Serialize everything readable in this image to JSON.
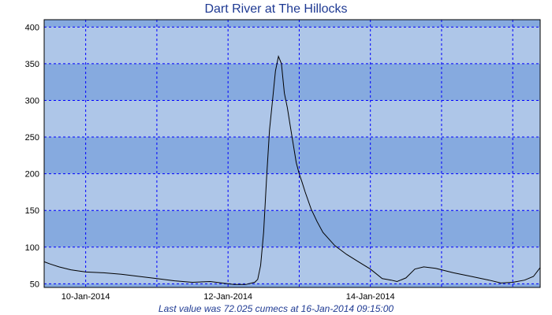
{
  "chart_data": {
    "type": "line",
    "title": "Dart River at The Hillocks",
    "caption": "Last value was 72.025 cumecs at 16-Jan-2014 09:15:00",
    "xlabel": "",
    "ylabel": "",
    "ylim": [
      45,
      410
    ],
    "xlim": [
      "09-Jan-2014 10:00",
      "16-Jan-2014 09:15"
    ],
    "yticks": [
      50,
      100,
      150,
      200,
      250,
      300,
      350,
      400
    ],
    "xticks": [
      {
        "label": "10-Jan-2014",
        "date": "10-Jan-2014 00:00"
      },
      {
        "label": "12-Jan-2014",
        "date": "12-Jan-2014 00:00"
      },
      {
        "label": "14-Jan-2014",
        "date": "14-Jan-2014 00:00"
      }
    ],
    "x_gridlines": [
      "10-Jan-2014 00:00",
      "11-Jan-2014 00:00",
      "12-Jan-2014 00:00",
      "13-Jan-2014 00:00",
      "14-Jan-2014 00:00",
      "15-Jan-2014 00:00",
      "16-Jan-2014 00:00"
    ],
    "grid": true,
    "colors": {
      "band_dark": "#86aadf",
      "band_light": "#aec6e8",
      "grid": "#0000ff",
      "line": "#000000",
      "title": "#1f3a93"
    },
    "series": [
      {
        "x": [
          "09-Jan-2014 10:00",
          "09-Jan-2014 12:00",
          "09-Jan-2014 15:00",
          "09-Jan-2014 19:00",
          "10-Jan-2014 00:00",
          "10-Jan-2014 06:00",
          "10-Jan-2014 12:00",
          "10-Jan-2014 18:00",
          "11-Jan-2014 00:00",
          "11-Jan-2014 06:00",
          "11-Jan-2014 12:00",
          "11-Jan-2014 18:00",
          "11-Jan-2014 22:00",
          "12-Jan-2014 02:00",
          "12-Jan-2014 06:00",
          "12-Jan-2014 07:00",
          "12-Jan-2014 08:00",
          "12-Jan-2014 09:00",
          "12-Jan-2014 10:00",
          "12-Jan-2014 11:00",
          "12-Jan-2014 12:00",
          "12-Jan-2014 13:00",
          "12-Jan-2014 14:00",
          "12-Jan-2014 15:00",
          "12-Jan-2014 16:00",
          "12-Jan-2014 17:00",
          "12-Jan-2014 18:00",
          "12-Jan-2014 19:00",
          "12-Jan-2014 20:00",
          "12-Jan-2014 21:00",
          "12-Jan-2014 22:00",
          "12-Jan-2014 23:00",
          "13-Jan-2014 00:00",
          "13-Jan-2014 01:00",
          "13-Jan-2014 02:00",
          "13-Jan-2014 04:00",
          "13-Jan-2014 06:00",
          "13-Jan-2014 08:00",
          "13-Jan-2014 12:00",
          "13-Jan-2014 16:00",
          "13-Jan-2014 20:00",
          "14-Jan-2014 00:00",
          "14-Jan-2014 04:00",
          "14-Jan-2014 07:00",
          "14-Jan-2014 09:00",
          "14-Jan-2014 12:00",
          "14-Jan-2014 15:00",
          "14-Jan-2014 18:00",
          "14-Jan-2014 22:00",
          "15-Jan-2014 04:00",
          "15-Jan-2014 10:00",
          "15-Jan-2014 16:00",
          "15-Jan-2014 20:00",
          "16-Jan-2014 00:00",
          "16-Jan-2014 04:00",
          "16-Jan-2014 07:00",
          "16-Jan-2014 09:15"
        ],
        "values": [
          80,
          77,
          73,
          69,
          66,
          65,
          63,
          60,
          57,
          54,
          52,
          53,
          51,
          49,
          49,
          50,
          51,
          52,
          56,
          75,
          120,
          195,
          260,
          300,
          340,
          360,
          350,
          310,
          290,
          265,
          240,
          215,
          200,
          188,
          175,
          152,
          135,
          120,
          102,
          90,
          80,
          70,
          57,
          55,
          53,
          58,
          70,
          73,
          71,
          65,
          60,
          55,
          51,
          52,
          55,
          60,
          72
        ]
      }
    ]
  }
}
